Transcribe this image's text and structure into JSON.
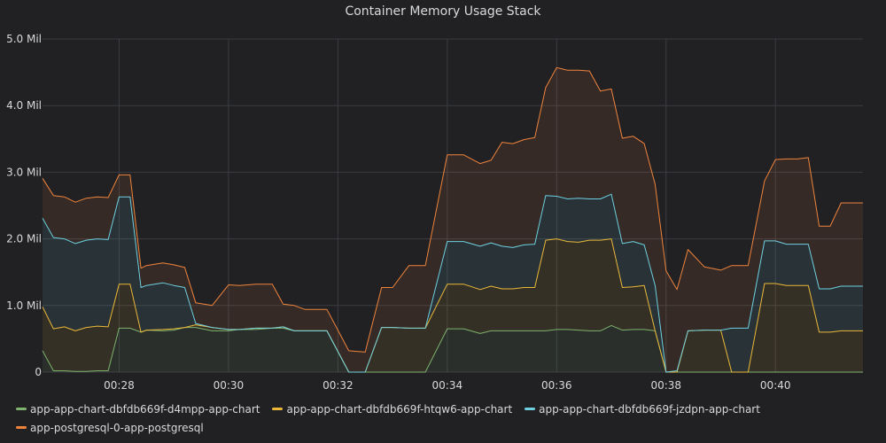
{
  "chart_data": {
    "type": "area",
    "stacked": true,
    "title": "Container Memory Usage Stack",
    "xlabel": "",
    "ylabel": "",
    "x_ticks": [
      "00:28",
      "00:30",
      "00:32",
      "00:34",
      "00:36",
      "00:38",
      "00:40"
    ],
    "y_ticks": [
      "0",
      "1.0 Mil",
      "2.0 Mil",
      "3.0 Mil",
      "4.0 Mil",
      "5.0 Mil"
    ],
    "x_range_minutes": [
      26.6,
      41.6
    ],
    "ylim": [
      0,
      5.0
    ],
    "y_unit": "Mil",
    "grid": true,
    "legend_position": "bottom",
    "x": [
      26.6,
      26.8,
      27.0,
      27.2,
      27.4,
      27.6,
      27.8,
      28.0,
      28.2,
      28.4,
      28.5,
      28.8,
      29.0,
      29.2,
      29.4,
      29.7,
      30.0,
      30.2,
      30.5,
      30.8,
      31.0,
      31.2,
      31.4,
      31.6,
      31.8,
      32.2,
      32.5,
      32.8,
      33.0,
      33.3,
      33.6,
      34.0,
      34.3,
      34.6,
      34.8,
      35.0,
      35.2,
      35.4,
      35.6,
      35.8,
      36.0,
      36.2,
      36.4,
      36.6,
      36.8,
      37.0,
      37.2,
      37.4,
      37.6,
      37.8,
      38.0,
      38.2,
      38.4,
      38.7,
      39.0,
      39.2,
      39.5,
      39.8,
      40.0,
      40.2,
      40.4,
      40.6,
      40.8,
      41.0,
      41.2,
      41.4,
      41.6
    ],
    "series": [
      {
        "name": "app-app-chart-dbfdb669f-d4mpp-app-chart",
        "color": "#7eb26d",
        "values": [
          0.32,
          0.02,
          0.02,
          0.01,
          0.01,
          0.02,
          0.02,
          0.66,
          0.66,
          0.6,
          0.63,
          0.62,
          0.63,
          0.67,
          0.67,
          0.62,
          0.62,
          0.64,
          0.64,
          0.66,
          0.66,
          0.62,
          0.62,
          0.62,
          0.62,
          0.0,
          0.0,
          0.0,
          0.0,
          0.0,
          0.0,
          0.65,
          0.65,
          0.58,
          0.62,
          0.62,
          0.62,
          0.62,
          0.62,
          0.62,
          0.64,
          0.64,
          0.63,
          0.62,
          0.62,
          0.7,
          0.63,
          0.64,
          0.64,
          0.62,
          0.0,
          0.0,
          0.0,
          0.0,
          0.0,
          0.0,
          0.0,
          0.0,
          0.0,
          0.0,
          0.0,
          0.0,
          0.0,
          0.0,
          0.0,
          0.0,
          0.0
        ]
      },
      {
        "name": "app-app-chart-dbfdb669f-htqw6-app-chart",
        "color": "#eab839",
        "values": [
          0.66,
          0.63,
          0.66,
          0.61,
          0.66,
          0.67,
          0.66,
          0.66,
          0.66,
          0.0,
          0.0,
          0.02,
          0.02,
          0.0,
          0.04,
          0.05,
          0.02,
          0.0,
          0.02,
          0.0,
          0.02,
          0.0,
          0.0,
          0.0,
          0.0,
          0.0,
          0.0,
          0.67,
          0.67,
          0.66,
          0.66,
          0.67,
          0.67,
          0.66,
          0.67,
          0.63,
          0.63,
          0.65,
          0.65,
          1.36,
          1.36,
          1.32,
          1.32,
          1.36,
          1.36,
          1.3,
          0.64,
          0.64,
          0.66,
          0.0,
          0.0,
          0.0,
          0.62,
          0.63,
          0.63,
          0.0,
          0.0,
          1.33,
          1.33,
          1.3,
          1.3,
          1.3,
          0.6,
          0.6,
          0.62,
          0.62,
          0.62
        ]
      },
      {
        "name": "app-app-chart-dbfdb669f-jzdpn-app-chart",
        "color": "#6ed0e0",
        "values": [
          1.33,
          1.37,
          1.32,
          1.31,
          1.31,
          1.31,
          1.31,
          1.31,
          1.31,
          0.67,
          0.67,
          0.7,
          0.65,
          0.6,
          0.02,
          0.0,
          0.0,
          0.0,
          0.0,
          0.0,
          0.0,
          0.0,
          0.0,
          0.0,
          0.0,
          0.0,
          0.0,
          0.0,
          0.0,
          0.0,
          0.0,
          0.64,
          0.64,
          0.65,
          0.65,
          0.64,
          0.62,
          0.64,
          0.65,
          0.67,
          0.64,
          0.64,
          0.66,
          0.62,
          0.62,
          0.67,
          0.66,
          0.68,
          0.61,
          0.68,
          0.0,
          0.02,
          0.0,
          0.0,
          0.0,
          0.66,
          0.66,
          0.64,
          0.64,
          0.62,
          0.62,
          0.62,
          0.65,
          0.65,
          0.67,
          0.67,
          0.67
        ]
      },
      {
        "name": "app-postgresql-0-app-postgresql",
        "color": "#ef843c",
        "values": [
          0.6,
          0.63,
          0.63,
          0.62,
          0.63,
          0.63,
          0.63,
          0.33,
          0.33,
          0.29,
          0.3,
          0.3,
          0.31,
          0.3,
          0.31,
          0.33,
          0.67,
          0.66,
          0.66,
          0.66,
          0.34,
          0.38,
          0.32,
          0.32,
          0.32,
          0.32,
          0.3,
          0.6,
          0.6,
          0.94,
          0.94,
          1.3,
          1.3,
          1.24,
          1.24,
          1.56,
          1.56,
          1.58,
          1.6,
          1.62,
          1.93,
          1.93,
          1.92,
          1.92,
          1.62,
          1.58,
          1.58,
          1.58,
          1.52,
          1.52,
          1.52,
          1.22,
          1.22,
          0.95,
          0.9,
          0.94,
          0.94,
          0.9,
          1.22,
          1.28,
          1.28,
          1.3,
          0.94,
          0.94,
          1.25,
          1.25,
          1.25
        ]
      }
    ]
  }
}
